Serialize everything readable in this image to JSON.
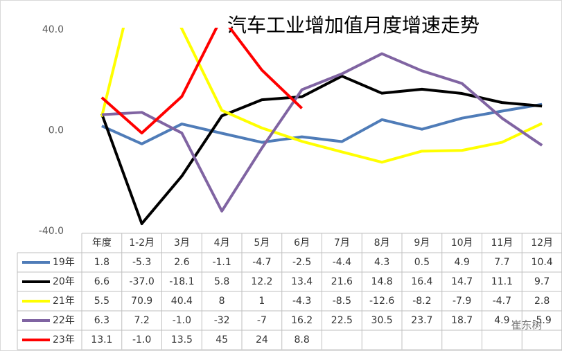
{
  "chart_data": {
    "type": "line",
    "title": "汽车工业增加值月度增速走势",
    "categories": [
      "年度",
      "1-2月",
      "3月",
      "4月",
      "5月",
      "6月",
      "7月",
      "8月",
      "9月",
      "10月",
      "11月",
      "12月"
    ],
    "series": [
      {
        "name": "19年",
        "color": "#4f7cb8",
        "values": [
          1.8,
          -5.3,
          2.6,
          -1.1,
          -4.7,
          -2.5,
          -4.4,
          4.3,
          0.5,
          4.9,
          7.7,
          10.4
        ]
      },
      {
        "name": "20年",
        "color": "#000000",
        "values": [
          6.6,
          -37,
          -18.1,
          5.8,
          12.2,
          13.4,
          21.6,
          14.8,
          16.4,
          14.7,
          11.1,
          9.7
        ],
        "value_labels": [
          "6.6",
          "-37.0",
          "-18.1",
          "5.8",
          "12.2",
          "13.4",
          "21.6",
          "14.8",
          "16.4",
          "14.7",
          "11.1",
          "9.7"
        ]
      },
      {
        "name": "21年",
        "color": "#ffff00",
        "values": [
          5.5,
          70.9,
          40.4,
          8,
          1,
          -4.3,
          -8.5,
          -12.6,
          -8.2,
          -7.9,
          -4.7,
          2.8
        ]
      },
      {
        "name": "22年",
        "color": "#8064a2",
        "values": [
          6.3,
          7.2,
          -1,
          -32,
          -7,
          16.2,
          22.5,
          30.5,
          23.7,
          18.7,
          4.9,
          -5.9
        ],
        "value_labels": [
          "6.3",
          "7.2",
          "-1.0",
          "-32",
          "-7",
          "16.2",
          "22.5",
          "30.5",
          "23.7",
          "18.7",
          "4.9",
          "-5.9"
        ]
      },
      {
        "name": "23年",
        "color": "#ff0000",
        "values": [
          13.1,
          -1,
          13.5,
          45,
          24,
          8.8,
          null,
          null,
          null,
          null,
          null,
          null
        ],
        "value_labels": [
          "13.1",
          "-1.0",
          "13.5",
          "45",
          "24",
          "8.8",
          null,
          null,
          null,
          null,
          null,
          null
        ]
      }
    ],
    "ylim": [
      -40,
      40
    ],
    "yticks": [
      {
        "value": -40,
        "label": "-40.0"
      },
      {
        "value": 0,
        "label": "0.0"
      },
      {
        "value": 40,
        "label": "40.0"
      }
    ],
    "watermark": "崔东树"
  }
}
